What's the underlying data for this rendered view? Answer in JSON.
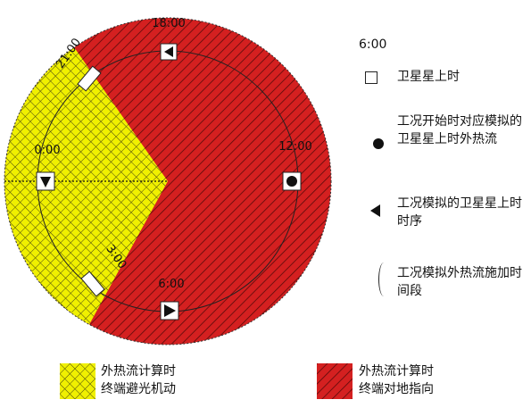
{
  "legend": {
    "title": "6:00",
    "satellite_time": "卫星星上时",
    "start_flux": "工况开始时对应模拟的卫星星上时外热流",
    "sequence": "工况模拟的卫星星上时时序",
    "period": "工况模拟外热流施加时间段"
  },
  "bottom_legend": {
    "yellow_label": "外热流计算时\n终端避光机动",
    "red_label": "外热流计算时\n终端对地指向"
  },
  "diagram": {
    "label_top": "18:00",
    "label_right": "12:00",
    "label_bottom": "6:00",
    "label_left": "0:00",
    "label_upper_left": "21:00",
    "label_lower_left": "3:00"
  },
  "colors": {
    "red_fill": "#d42020",
    "yellow_fill": "#f0f000",
    "hatch_line": "#5a0a0a",
    "grid_line": "#4a4a10"
  }
}
